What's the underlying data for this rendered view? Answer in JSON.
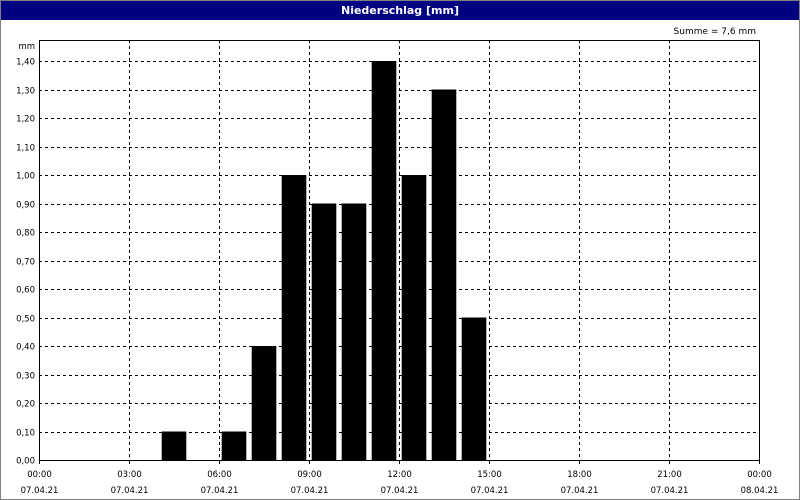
{
  "window": {
    "title": "Niederschlag [mm]"
  },
  "annotation": "Summe = 7,6 mm",
  "chart_data": {
    "type": "bar",
    "title": "Niederschlag [mm]",
    "ylabel": "mm",
    "ylim": [
      0,
      1.45
    ],
    "y_ticks": [
      "0,00",
      "0,10",
      "0,20",
      "0,30",
      "0,40",
      "0,50",
      "0,60",
      "0,70",
      "0,80",
      "0,90",
      "1,00",
      "1,10",
      "1,20",
      "1,30",
      "1,40"
    ],
    "x_ticks": [
      {
        "time": "00:00",
        "date": "07.04.21"
      },
      {
        "time": "03:00",
        "date": "07.04.21"
      },
      {
        "time": "06:00",
        "date": "07.04.21"
      },
      {
        "time": "09:00",
        "date": "07.04.21"
      },
      {
        "time": "12:00",
        "date": "07.04.21"
      },
      {
        "time": "15:00",
        "date": "07.04.21"
      },
      {
        "time": "18:00",
        "date": "07.04.21"
      },
      {
        "time": "21:00",
        "date": "07.04.21"
      },
      {
        "time": "00:00",
        "date": "08.04.21"
      }
    ],
    "x_range_hours": [
      0,
      24
    ],
    "bar_color": "#000000",
    "grid": true,
    "bars": [
      {
        "hour": 4.5,
        "value": 0.1
      },
      {
        "hour": 6.5,
        "value": 0.1
      },
      {
        "hour": 7.5,
        "value": 0.4
      },
      {
        "hour": 8.5,
        "value": 1.0
      },
      {
        "hour": 9.5,
        "value": 0.9
      },
      {
        "hour": 10.5,
        "value": 0.9
      },
      {
        "hour": 11.5,
        "value": 1.4
      },
      {
        "hour": 12.5,
        "value": 1.0
      },
      {
        "hour": 13.5,
        "value": 1.3
      },
      {
        "hour": 14.5,
        "value": 0.5
      }
    ]
  }
}
